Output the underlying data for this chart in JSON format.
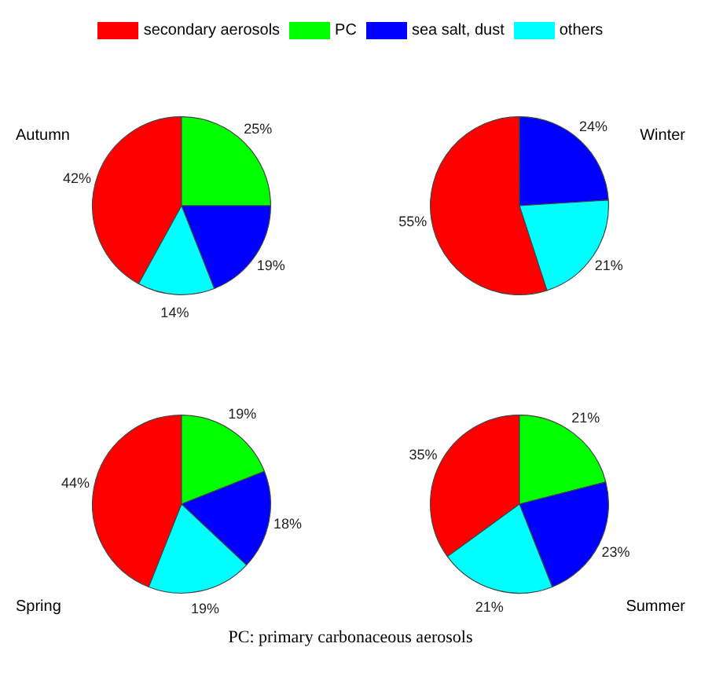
{
  "chart_data": [
    {
      "type": "pie",
      "title": "Autumn",
      "categories": [
        "secondary aerosols",
        "PC",
        "sea salt, dust",
        "others"
      ],
      "values": [
        42,
        25,
        19,
        14
      ],
      "colors": [
        "#ff0000",
        "#00ff00",
        "#0000ff",
        "#00ffff"
      ],
      "value_labels": [
        "42%",
        "25%",
        "19%",
        "14%"
      ],
      "legend": "top"
    },
    {
      "type": "pie",
      "title": "Winter",
      "categories": [
        null,
        null,
        null,
        null
      ],
      "values": [
        55,
        0,
        24,
        21
      ],
      "colors": [
        "#ff0000",
        "#00ff00",
        "#0000ff",
        "#00ffff"
      ],
      "value_labels": [
        "55%",
        null,
        "24%",
        "21%"
      ]
    },
    {
      "type": "pie",
      "title": "Spring",
      "categories": [
        null,
        null,
        null,
        null
      ],
      "values": [
        44,
        19,
        18,
        19
      ],
      "colors": [
        "#ff0000",
        "#00ff00",
        "#0000ff",
        "#00ffff"
      ],
      "value_labels": [
        "44%",
        "19%",
        "18%",
        "19%"
      ]
    },
    {
      "type": "pie",
      "title": "Summer",
      "categories": [
        null,
        null,
        null,
        null
      ],
      "values": [
        35,
        21,
        23,
        21
      ],
      "colors": [
        "#ff0000",
        "#00ff00",
        "#0000ff",
        "#00ffff"
      ],
      "value_labels": [
        "35%",
        "21%",
        "23%",
        "21%"
      ],
      "annotations": [
        "PC: primary carbonaceous aerosols"
      ]
    }
  ]
}
